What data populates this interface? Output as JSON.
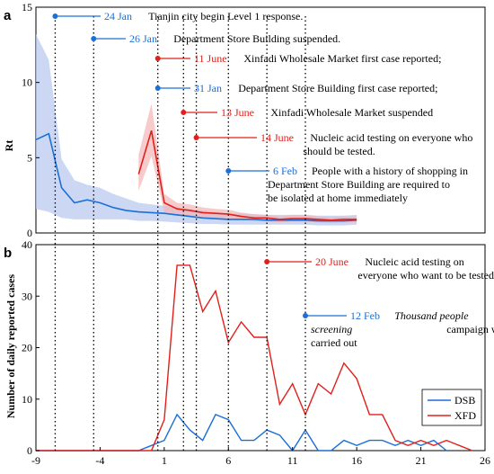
{
  "colors": {
    "dsb": "#1a6fd8",
    "xfd": "#e0201b",
    "dsb_band": "#b9c9ef",
    "xfd_band": "#f4b5b5",
    "axis": "#000000"
  },
  "chart_data": [
    {
      "panel": "a",
      "type": "line",
      "ylabel": "Rt",
      "ylim": [
        0,
        15
      ],
      "yticks": [
        "0",
        "5",
        "10",
        "15"
      ],
      "xlim": [
        -9,
        26
      ],
      "series": [
        {
          "name": "DSB",
          "x": [
            -9,
            -8,
            -7,
            -6,
            -5,
            -4,
            -3,
            -2,
            -1,
            0,
            1,
            2,
            3,
            4,
            5,
            6,
            7,
            8,
            9,
            10,
            11,
            12,
            13,
            14,
            15,
            16
          ],
          "y": [
            6.2,
            6.6,
            3.0,
            2.0,
            2.2,
            2.0,
            1.7,
            1.5,
            1.4,
            1.35,
            1.3,
            1.2,
            1.1,
            1.0,
            0.95,
            0.9,
            0.9,
            0.9,
            0.85,
            0.85,
            0.85,
            0.85,
            0.8,
            0.8,
            0.8,
            0.85
          ],
          "lower": [
            1.6,
            1.4,
            1.0,
            0.9,
            0.9,
            0.9,
            0.9,
            0.9,
            0.8,
            0.8,
            0.75,
            0.7,
            0.65,
            0.6,
            0.6,
            0.55,
            0.55,
            0.55,
            0.55,
            0.55,
            0.55,
            0.55,
            0.5,
            0.5,
            0.5,
            0.55
          ],
          "upper": [
            13.2,
            11.5,
            4.9,
            3.5,
            3.2,
            3.0,
            2.6,
            2.3,
            2.0,
            1.9,
            1.8,
            1.7,
            1.6,
            1.5,
            1.4,
            1.3,
            1.3,
            1.25,
            1.2,
            1.2,
            1.2,
            1.2,
            1.15,
            1.15,
            1.15,
            1.2
          ]
        },
        {
          "name": "XFD",
          "x": [
            -1,
            0,
            1,
            2,
            3,
            4,
            5,
            6,
            7,
            8,
            9,
            10,
            11,
            12,
            13,
            14,
            15,
            16
          ],
          "y": [
            3.9,
            6.8,
            2.0,
            1.6,
            1.5,
            1.35,
            1.3,
            1.25,
            1.1,
            1.0,
            1.0,
            0.9,
            0.95,
            0.95,
            0.9,
            0.85,
            0.9,
            0.9
          ],
          "lower": [
            2.8,
            5.1,
            1.4,
            1.2,
            1.15,
            1.05,
            1.0,
            1.0,
            0.85,
            0.8,
            0.75,
            0.7,
            0.75,
            0.75,
            0.7,
            0.65,
            0.7,
            0.7
          ],
          "upper": [
            5.2,
            8.6,
            2.6,
            2.0,
            1.9,
            1.7,
            1.6,
            1.55,
            1.35,
            1.25,
            1.2,
            1.1,
            1.2,
            1.2,
            1.1,
            1.05,
            1.1,
            1.1
          ]
        }
      ],
      "annotations": [
        {
          "date": "24 Jan",
          "text": "Tianjin city begin Level 1 response.",
          "color": "#1a6fd8",
          "x": -7.5
        },
        {
          "date": "26 Jan",
          "text": "Department Store Building suspended.",
          "color": "#1a6fd8",
          "x": -4.5
        },
        {
          "date": "11 June",
          "text": "Xinfadi Wholesale Market first case reported;",
          "color": "#e0201b",
          "x": 0.5
        },
        {
          "date": "31 Jan",
          "text": "Department Store Building first case reported;",
          "color": "#1a6fd8",
          "x": 0.5
        },
        {
          "date": "13 June",
          "text": "Xinfadi Wholesale Market suspended",
          "color": "#e0201b",
          "x": 2.5
        },
        {
          "date": "14 June",
          "text": "Nucleic acid testing on everyone who should be tested.",
          "color": "#e0201b",
          "x": 3.5
        },
        {
          "date": "6 Feb",
          "text": "People with a history of shopping in Department Store Building are required to be isolated at home immediately",
          "color": "#1a6fd8",
          "x": 6.0
        }
      ]
    },
    {
      "panel": "b",
      "type": "line",
      "ylabel": "Number of daily reported cases",
      "ylim": [
        0,
        40
      ],
      "yticks": [
        "0",
        "10",
        "20",
        "30",
        "40"
      ],
      "xlim": [
        -9,
        26
      ],
      "xticks": [
        "-9",
        "-4",
        "1",
        "6",
        "11",
        "16",
        "21",
        "26"
      ],
      "legend": "bottom-right",
      "series": [
        {
          "name": "DSB",
          "x": [
            -9,
            -8,
            -7,
            -6,
            -5,
            -4,
            -3,
            -2,
            -1,
            0,
            1,
            2,
            3,
            4,
            5,
            6,
            7,
            8,
            9,
            10,
            11,
            12,
            13,
            14,
            15,
            16,
            17,
            18,
            19,
            20,
            21,
            22,
            23
          ],
          "y": [
            0,
            0,
            0,
            0,
            0,
            0,
            0,
            0,
            0,
            1,
            2,
            7,
            4,
            2,
            7,
            6,
            2,
            2,
            4,
            3,
            0,
            4,
            0,
            0,
            2,
            1,
            2,
            2,
            1,
            2,
            1,
            2,
            0
          ]
        },
        {
          "name": "XFD",
          "x": [
            -9,
            -8,
            -7,
            -6,
            -5,
            -4,
            -3,
            -2,
            -1,
            0,
            1,
            2,
            3,
            4,
            5,
            6,
            7,
            8,
            9,
            10,
            11,
            12,
            13,
            14,
            15,
            16,
            17,
            18,
            19,
            20,
            21,
            22,
            23,
            24,
            25
          ],
          "y": [
            0,
            0,
            0,
            0,
            0,
            0,
            0,
            0,
            0,
            0,
            6,
            36,
            36,
            27,
            31,
            21,
            25,
            22,
            22,
            9,
            13,
            7,
            13,
            11,
            17,
            14,
            7,
            7,
            2,
            1,
            2,
            1,
            2,
            1,
            0
          ]
        }
      ],
      "annotations": [
        {
          "date": "20 June",
          "text": "Nucleic acid testing on everyone who want to be tested",
          "color": "#e0201b",
          "x": 9.0
        },
        {
          "date": "12 Feb",
          "text": "Thousand people screening campaign was carried out",
          "color": "#1a6fd8",
          "x": 12.0
        }
      ]
    }
  ]
}
